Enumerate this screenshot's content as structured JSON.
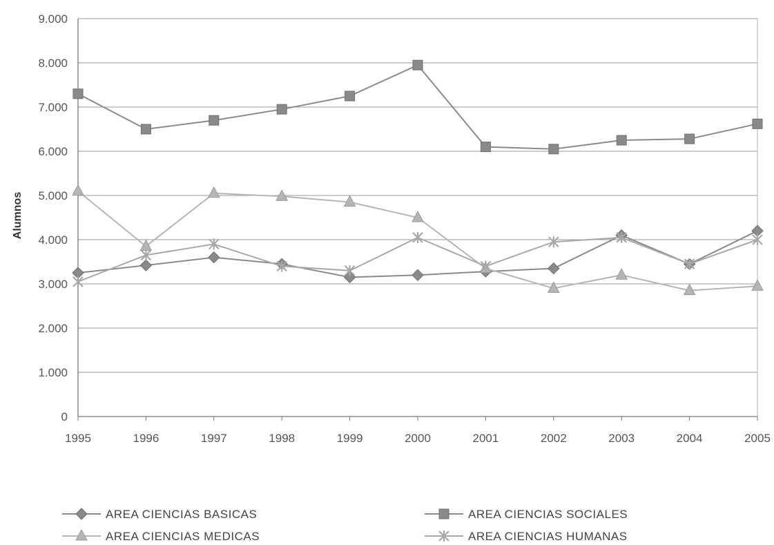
{
  "chart_data": {
    "type": "line",
    "title": "",
    "xlabel": "",
    "ylabel": "Alumnos",
    "x": [
      "1995",
      "1996",
      "1997",
      "1998",
      "1999",
      "2000",
      "2001",
      "2002",
      "2003",
      "2004",
      "2005"
    ],
    "ylim": [
      0,
      9000
    ],
    "yticks": [
      {
        "value": 0,
        "label": "0"
      },
      {
        "value": 1000,
        "label": "1.000"
      },
      {
        "value": 2000,
        "label": "2.000"
      },
      {
        "value": 3000,
        "label": "3.000"
      },
      {
        "value": 4000,
        "label": "4.000"
      },
      {
        "value": 5000,
        "label": "5.000"
      },
      {
        "value": 6000,
        "label": "6.000"
      },
      {
        "value": 7000,
        "label": "7.000"
      },
      {
        "value": 8000,
        "label": "8.000"
      },
      {
        "value": 9000,
        "label": "9.000"
      }
    ],
    "grid": true,
    "legend_position": "bottom",
    "series": [
      {
        "name": "AREA CIENCIAS BASICAS",
        "marker": "diamond",
        "color": "#8a8a8a",
        "values": [
          3250,
          3420,
          3600,
          3450,
          3150,
          3200,
          3280,
          3350,
          4100,
          3450,
          4200
        ]
      },
      {
        "name": "AREA CIENCIAS SOCIALES",
        "marker": "square",
        "color": "#8a8a8a",
        "values": [
          7300,
          6500,
          6700,
          6950,
          7250,
          7950,
          6100,
          6050,
          6250,
          6280,
          6620
        ]
      },
      {
        "name": "AREA CIENCIAS MEDICAS",
        "marker": "triangle",
        "color": "#b5b5b5",
        "values": [
          5100,
          3850,
          5050,
          4980,
          4850,
          4500,
          3350,
          2900,
          3200,
          2850,
          2950
        ]
      },
      {
        "name": "AREA CIENCIAS HUMANAS",
        "marker": "star",
        "color": "#a8a8a8",
        "values": [
          3050,
          3650,
          3900,
          3400,
          3300,
          4050,
          3400,
          3950,
          4050,
          3450,
          4000
        ]
      }
    ]
  }
}
